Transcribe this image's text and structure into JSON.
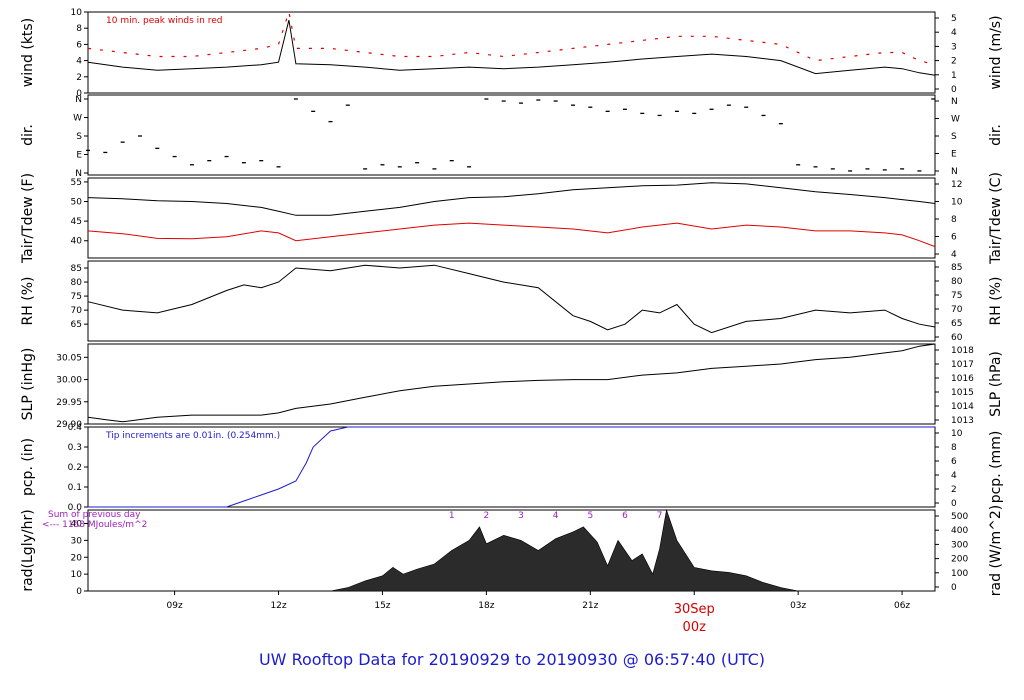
{
  "page": {
    "footer_text": "UW Rooftop Data for 20190929  to  20190930 @ 06:57:40  (UTC)",
    "day_label_date": "30Sep",
    "day_label_time": "00z",
    "time_ticks": [
      "09z",
      "12z",
      "15z",
      "18z",
      "21z",
      "00z",
      "03z",
      "06z"
    ]
  },
  "chart_data": [
    {
      "type": "line",
      "panel": "wind",
      "ylabel_left": "wind (kts)",
      "ylabel_right": "wind (m/s)",
      "ylim": [
        0,
        10
      ],
      "left_ticks": [
        "0",
        "2",
        "4",
        "6",
        "8",
        "10"
      ],
      "right_ticks": [
        "0",
        "1",
        "2",
        "3",
        "4",
        "5"
      ],
      "annotation": "10 min. peak winds in red",
      "x_hours": [
        6.5,
        7.5,
        8.5,
        9.5,
        10.5,
        11.5,
        12.0,
        12.3,
        12.5,
        13.5,
        14.5,
        15.5,
        16.5,
        17.5,
        18.5,
        19.5,
        20.5,
        21.5,
        22.5,
        23.5,
        24.5,
        25.5,
        26.5,
        27.5,
        28.5,
        29.5,
        30.0,
        30.5,
        30.95
      ],
      "series": [
        {
          "values": [
            3.8,
            3.2,
            2.8,
            3.0,
            3.2,
            3.5,
            3.8,
            9.0,
            3.6,
            3.5,
            3.2,
            2.8,
            3.0,
            3.2,
            3.0,
            3.2,
            3.5,
            3.8,
            4.2,
            4.5,
            4.8,
            4.5,
            4.0,
            2.4,
            2.8,
            3.2,
            3.0,
            2.5,
            2.2
          ]
        },
        {
          "values": [
            5.5,
            5.0,
            4.5,
            4.5,
            5.0,
            5.5,
            6.0,
            10.0,
            5.5,
            5.5,
            5.0,
            4.5,
            4.5,
            5.0,
            4.5,
            5.0,
            5.5,
            6.0,
            6.5,
            7.0,
            7.0,
            6.5,
            6.0,
            4.0,
            4.5,
            5.0,
            5.0,
            4.0,
            3.5
          ]
        }
      ]
    },
    {
      "type": "scatter",
      "panel": "dir",
      "ylabel_left": "dir.",
      "ylabel_right": "dir.",
      "ylim": [
        0,
        360
      ],
      "left_ticks": [
        "N",
        "E",
        "S",
        "W",
        "N"
      ],
      "right_ticks": [
        "N",
        "E",
        "S",
        "W",
        "N"
      ],
      "x_hours": [
        6.5,
        7.0,
        7.5,
        8.0,
        8.5,
        9.0,
        9.5,
        10.0,
        10.5,
        11.0,
        11.5,
        12.0,
        12.5,
        13.0,
        13.5,
        14.0,
        14.5,
        15.0,
        15.5,
        16.0,
        16.5,
        17.0,
        17.5,
        18.0,
        18.5,
        19.0,
        19.5,
        20.0,
        20.5,
        21.0,
        21.5,
        22.0,
        22.5,
        23.0,
        23.5,
        24.0,
        24.5,
        25.0,
        25.5,
        26.0,
        26.5,
        27.0,
        27.5,
        28.0,
        28.5,
        29.0,
        29.5,
        30.0,
        30.5,
        30.9
      ],
      "values": [
        110,
        100,
        150,
        180,
        120,
        80,
        40,
        60,
        80,
        50,
        60,
        30,
        360,
        300,
        250,
        330,
        20,
        40,
        30,
        50,
        20,
        60,
        30,
        360,
        350,
        340,
        355,
        350,
        330,
        320,
        300,
        310,
        290,
        280,
        300,
        290,
        310,
        330,
        320,
        280,
        240,
        40,
        30,
        20,
        10,
        20,
        15,
        20,
        10,
        360
      ]
    },
    {
      "type": "line",
      "panel": "temp",
      "ylabel_left": "Tair/Tdew (F)",
      "ylabel_right": "Tair/Tdew (C)",
      "ylim": [
        35.6,
        56
      ],
      "left_ticks": [
        "40",
        "45",
        "50",
        "55"
      ],
      "right_ticks": [
        "4",
        "6",
        "8",
        "10",
        "12"
      ],
      "x_hours": [
        6.5,
        7.5,
        8.5,
        9.5,
        10.5,
        11.5,
        12.0,
        12.5,
        13.5,
        14.5,
        15.5,
        16.5,
        17.5,
        18.5,
        19.5,
        20.5,
        21.5,
        22.5,
        23.5,
        24.5,
        25.5,
        26.5,
        27.5,
        28.5,
        29.5,
        30.0,
        30.5,
        30.95
      ],
      "series": [
        {
          "values": [
            51.0,
            50.7,
            50.2,
            50.0,
            49.5,
            48.5,
            47.5,
            46.5,
            46.5,
            47.5,
            48.5,
            50.0,
            51.0,
            51.2,
            52.0,
            53.0,
            53.5,
            54.0,
            54.2,
            54.8,
            54.5,
            53.5,
            52.5,
            51.8,
            51.0,
            50.5,
            50.0,
            49.5
          ]
        },
        {
          "values": [
            42.5,
            41.8,
            40.6,
            40.5,
            41.0,
            42.5,
            42.0,
            40.0,
            41.0,
            42.0,
            43.0,
            44.0,
            44.5,
            44.0,
            43.5,
            43.0,
            42.0,
            43.5,
            44.5,
            43.0,
            44.0,
            43.5,
            42.5,
            42.5,
            42.0,
            41.5,
            40.0,
            38.5
          ]
        }
      ]
    },
    {
      "type": "line",
      "panel": "rh",
      "ylabel_left": "RH (%)",
      "ylabel_right": "RH (%)",
      "ylim": [
        59,
        87.5
      ],
      "left_ticks": [
        "65",
        "70",
        "75",
        "80",
        "85"
      ],
      "right_ticks": [
        "60",
        "65",
        "70",
        "75",
        "80",
        "85"
      ],
      "x_hours": [
        6.5,
        7.5,
        8.5,
        9.5,
        10.5,
        11.0,
        11.5,
        12.0,
        12.5,
        13.5,
        14.5,
        15.5,
        16.5,
        17.5,
        18.5,
        19.5,
        20.5,
        21.0,
        21.5,
        22.0,
        22.5,
        23.0,
        23.5,
        24.0,
        24.5,
        25.5,
        26.5,
        27.5,
        28.5,
        29.5,
        30.0,
        30.5,
        30.95
      ],
      "series": [
        {
          "values": [
            73.0,
            70.0,
            69.0,
            72.0,
            77.0,
            79.0,
            78.0,
            80.0,
            85.0,
            84.0,
            86.0,
            85.0,
            86.0,
            83.0,
            80.0,
            78.0,
            68.0,
            66.0,
            63.0,
            65.0,
            70.0,
            69.0,
            72.0,
            65.0,
            62.0,
            66.0,
            67.0,
            70.0,
            69.0,
            70.0,
            67.0,
            65.0,
            64.0
          ]
        }
      ]
    },
    {
      "type": "line",
      "panel": "slp",
      "ylabel_left": "SLP (inHg)",
      "ylabel_right": "SLP (hPa)",
      "ylim": [
        29.9,
        30.08
      ],
      "left_ticks": [
        "29.90",
        "29.95",
        "30.00",
        "30.05"
      ],
      "right_ticks": [
        "1013",
        "1014",
        "1015",
        "1016",
        "1017",
        "1018"
      ],
      "x_hours": [
        6.5,
        7.0,
        7.5,
        8.5,
        9.5,
        10.5,
        11.5,
        12.0,
        12.5,
        13.5,
        14.5,
        15.5,
        16.5,
        17.5,
        18.5,
        19.5,
        20.5,
        21.5,
        22.5,
        23.5,
        24.5,
        25.5,
        26.5,
        27.5,
        28.5,
        29.5,
        30.0,
        30.5,
        30.95
      ],
      "series": [
        {
          "values": [
            29.915,
            29.91,
            29.905,
            29.915,
            29.92,
            29.92,
            29.92,
            29.925,
            29.935,
            29.945,
            29.96,
            29.975,
            29.985,
            29.99,
            29.995,
            29.998,
            30.0,
            30.0,
            30.01,
            30.015,
            30.025,
            30.03,
            30.035,
            30.045,
            30.05,
            30.06,
            30.065,
            30.075,
            30.08
          ]
        }
      ]
    },
    {
      "type": "line",
      "panel": "pcp",
      "ylabel_left": "pcp. (in)",
      "ylabel_right": "pcp. (mm)",
      "ylim": [
        0,
        0.4
      ],
      "left_ticks": [
        "0.0",
        "0.1",
        "0.2",
        "0.3",
        "0.4"
      ],
      "right_ticks": [
        "0",
        "2",
        "4",
        "6",
        "8",
        "10"
      ],
      "annotation": "Tip increments are 0.01in. (0.254mm.)",
      "x_hours": [
        6.5,
        10.0,
        10.5,
        11.0,
        11.5,
        12.0,
        12.5,
        12.8,
        13.0,
        13.5,
        14.0,
        30.95
      ],
      "series": [
        {
          "values": [
            0.0,
            0.0,
            0.0,
            0.03,
            0.06,
            0.09,
            0.13,
            0.22,
            0.3,
            0.38,
            0.4,
            0.4
          ]
        }
      ]
    },
    {
      "type": "area",
      "panel": "rad",
      "ylabel_left": "rad(Lgly/hr)",
      "ylabel_right": "rad (W/m^2)",
      "ylim": [
        0,
        48
      ],
      "left_ticks": [
        "0",
        "10",
        "20",
        "30",
        "40"
      ],
      "right_ticks": [
        "0",
        "100",
        "200",
        "300",
        "400",
        "500"
      ],
      "annotation_line1": "Sum of previous day",
      "annotation_line2": "<--- 1153 MJoules/m^2",
      "hour_labels": [
        "1",
        "2",
        "3",
        "4",
        "5",
        "6",
        "7"
      ],
      "hour_label_x": [
        17.0,
        18.0,
        19.0,
        20.0,
        21.0,
        22.0,
        23.0
      ],
      "x_hours": [
        6.5,
        13.5,
        14.0,
        14.5,
        15.0,
        15.3,
        15.6,
        16.0,
        16.5,
        17.0,
        17.5,
        17.8,
        18.0,
        18.5,
        19.0,
        19.5,
        20.0,
        20.5,
        20.8,
        21.2,
        21.5,
        21.8,
        22.2,
        22.5,
        22.8,
        23.0,
        23.2,
        23.5,
        24.0,
        24.5,
        25.0,
        25.5,
        26.0,
        26.5,
        27.0,
        30.95
      ],
      "values": [
        0,
        0,
        2,
        6,
        9,
        14,
        10,
        13,
        16,
        24,
        30,
        38,
        28,
        33,
        30,
        24,
        31,
        35,
        38,
        29,
        15,
        30,
        18,
        22,
        10,
        25,
        48,
        30,
        14,
        12,
        11,
        9,
        5,
        2,
        0,
        0
      ]
    }
  ]
}
